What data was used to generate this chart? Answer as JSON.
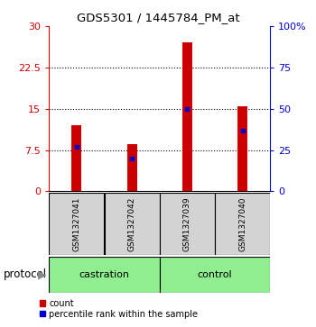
{
  "title": "GDS5301 / 1445784_PM_at",
  "samples": [
    "GSM1327041",
    "GSM1327042",
    "GSM1327039",
    "GSM1327040"
  ],
  "red_values": [
    12.0,
    8.5,
    27.0,
    15.5
  ],
  "blue_values": [
    8.1,
    6.0,
    15.0,
    11.0
  ],
  "ylim_left": [
    0,
    30
  ],
  "ylim_right": [
    0,
    100
  ],
  "yticks_left": [
    0,
    7.5,
    15,
    22.5,
    30
  ],
  "yticks_right": [
    0,
    25,
    50,
    75,
    100
  ],
  "ytick_labels_left": [
    "0",
    "7.5",
    "15",
    "22.5",
    "30"
  ],
  "ytick_labels_right": [
    "0",
    "25",
    "50",
    "75",
    "100%"
  ],
  "red_color": "#CC0000",
  "blue_color": "#0000CC",
  "bar_width": 0.18,
  "bg_color": "#FFFFFF",
  "legend_count_label": "count",
  "legend_pct_label": "percentile rank within the sample",
  "protocol_label": "protocol",
  "group_box_color": "#D3D3D3",
  "group_bg_color": "#90EE90",
  "grid_ticks": [
    7.5,
    15,
    22.5
  ]
}
